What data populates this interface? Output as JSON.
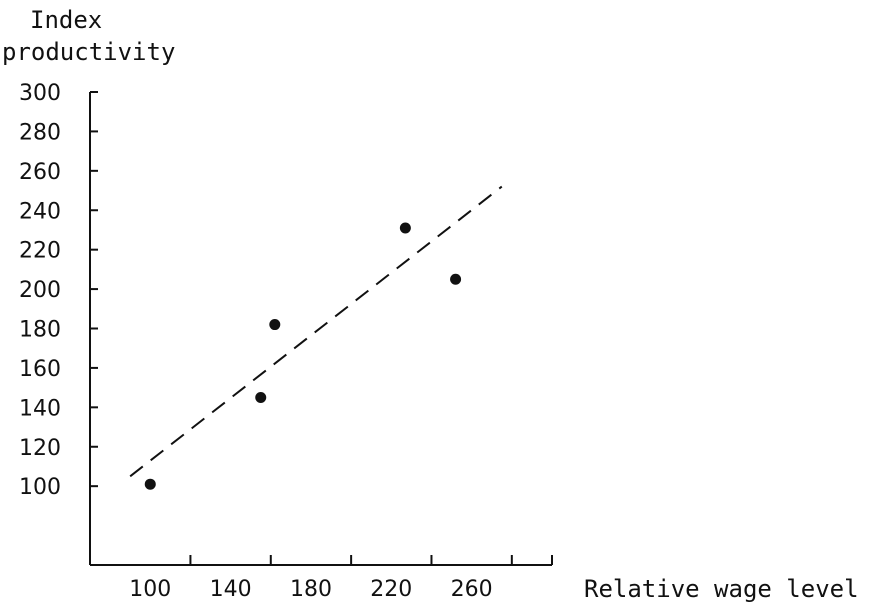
{
  "chart_data": {
    "type": "scatter",
    "ylabel_lines": [
      "Index",
      "productivity"
    ],
    "xlabel": "Relative wage level",
    "x_ticks": [
      100,
      140,
      180,
      220,
      260
    ],
    "y_ticks": [
      100,
      120,
      140,
      160,
      180,
      200,
      220,
      240,
      260,
      280,
      300
    ],
    "xlim": [
      70,
      300
    ],
    "ylim": [
      60,
      300
    ],
    "points": [
      {
        "x": 100,
        "y": 101
      },
      {
        "x": 155,
        "y": 145
      },
      {
        "x": 162,
        "y": 182
      },
      {
        "x": 227,
        "y": 231
      },
      {
        "x": 252,
        "y": 205
      }
    ],
    "trend_line": {
      "style": "dashed",
      "from": {
        "x": 90,
        "y": 105
      },
      "to": {
        "x": 275,
        "y": 252
      }
    },
    "marker_color": "#111111",
    "grid": false,
    "legend": "none"
  }
}
